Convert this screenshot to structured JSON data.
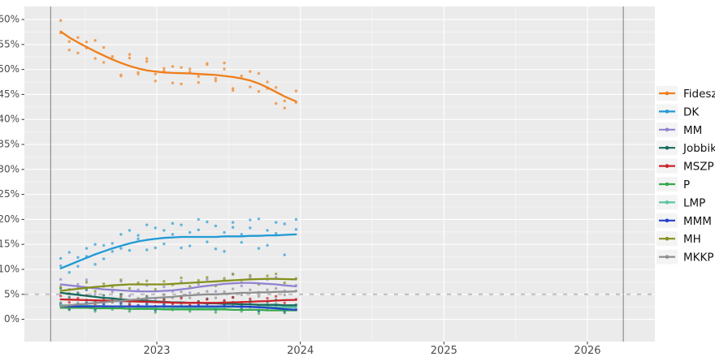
{
  "chart_data": {
    "type": "scatter",
    "title": "",
    "description": "Hungarian party polling: scatter of individual polls with smoothed trend lines",
    "legend_position": "right",
    "x_tick_labels": [
      "2023",
      "2024",
      "2025",
      "2026"
    ],
    "x_tick_years": [
      2023,
      2024,
      2025,
      2026
    ],
    "y_tick_labels": [
      "0%",
      "5%",
      "10%",
      "15%",
      "20%",
      "25%",
      "30%",
      "35%",
      "40%",
      "45%",
      "50%",
      "55%",
      "60%"
    ],
    "y_tick_values": [
      0,
      5,
      10,
      15,
      20,
      25,
      30,
      35,
      40,
      45,
      50,
      55,
      60
    ],
    "xlim": [
      2022.077,
      2026.47
    ],
    "ylim": [
      -4.45,
      62.6
    ],
    "grid": true,
    "threshold_line": {
      "value": 5,
      "style": "dashed"
    },
    "event_vlines": [
      2022.26,
      2026.25
    ],
    "poll_dates": [
      2022.33,
      2022.39,
      2022.45,
      2022.51,
      2022.57,
      2022.63,
      2022.69,
      2022.75,
      2022.81,
      2022.87,
      2022.93,
      2022.99,
      2023.05,
      2023.11,
      2023.17,
      2023.23,
      2023.29,
      2023.35,
      2023.41,
      2023.47,
      2023.53,
      2023.59,
      2023.65,
      2023.71,
      2023.77,
      2023.83,
      2023.89,
      2023.97
    ],
    "series": [
      {
        "name": "Fidesz",
        "color": "#ef7e1a",
        "trend": [
          57.6,
          56.4,
          55.4,
          54.5,
          53.6,
          52.8,
          52.0,
          51.3,
          50.7,
          50.2,
          49.8,
          49.6,
          49.4,
          49.3,
          49.25,
          49.2,
          49.1,
          49.0,
          48.9,
          48.7,
          48.5,
          48.2,
          47.8,
          47.2,
          46.4,
          45.5,
          44.6,
          43.6
        ],
        "polls": [
          59.8,
          53.9,
          56.4,
          54.3,
          55.8,
          51.4,
          52.6,
          48.7,
          52.3,
          49.4,
          52.2,
          47.7,
          49.7,
          50.6,
          47.1,
          50.1,
          48.6,
          51.0,
          47.7,
          51.3,
          45.8,
          48.7,
          49.6,
          45.6,
          47.5,
          43.2,
          43.7,
          43.4
        ],
        "polls2": [
          57.3,
          55.6,
          53.3,
          55.5,
          52.2,
          54.4,
          52.5,
          48.9,
          53.0,
          49.1,
          51.6,
          49.1,
          50.2,
          47.3,
          50.4,
          49.5,
          47.4,
          51.2,
          48.2,
          50.1,
          46.2,
          48.7,
          46.5,
          49.2,
          46.2,
          46.4,
          42.3,
          45.7
        ]
      },
      {
        "name": "DK",
        "color": "#219ad6",
        "trend": [
          10.2,
          10.9,
          11.6,
          12.3,
          13.0,
          13.6,
          14.2,
          14.7,
          15.2,
          15.6,
          15.9,
          16.1,
          16.3,
          16.4,
          16.5,
          16.5,
          16.5,
          16.5,
          16.5,
          16.6,
          16.6,
          16.6,
          16.7,
          16.7,
          16.8,
          16.8,
          16.9,
          17.0
        ],
        "polls": [
          12.2,
          9.4,
          12.4,
          14.2,
          11.0,
          14.8,
          13.6,
          17.0,
          13.8,
          16.1,
          18.9,
          14.3,
          17.8,
          19.2,
          14.3,
          17.4,
          20.0,
          15.5,
          18.7,
          13.6,
          18.4,
          17.0,
          19.9,
          14.2,
          17.8,
          19.4,
          12.9,
          20.0
        ],
        "polls2": [
          10.7,
          13.4,
          10.6,
          12.6,
          15.0,
          12.1,
          15.2,
          14.2,
          17.8,
          16.8,
          13.9,
          18.3,
          15.1,
          17.0,
          18.9,
          14.7,
          17.9,
          19.5,
          14.1,
          17.4,
          19.4,
          15.4,
          18.3,
          20.1,
          14.8,
          17.2,
          19.1,
          18.0
        ]
      },
      {
        "name": "MM",
        "color": "#9182cf",
        "trend": [
          7.0,
          6.8,
          6.6,
          6.4,
          6.2,
          6.0,
          5.9,
          5.8,
          5.7,
          5.6,
          5.6,
          5.6,
          5.7,
          5.8,
          6.0,
          6.2,
          6.5,
          6.7,
          6.9,
          7.1,
          7.2,
          7.3,
          7.3,
          7.2,
          7.1,
          7.0,
          6.8,
          6.6
        ],
        "polls": [
          8.0,
          6.0,
          7.0,
          7.9,
          5.0,
          6.6,
          5.5,
          7.6,
          4.7,
          5.9,
          6.8,
          4.1,
          6.5,
          5.6,
          7.6,
          5.3,
          7.0,
          8.0,
          5.6,
          7.8,
          9.1,
          6.7,
          8.4,
          5.4,
          8.0,
          8.4,
          5.7,
          6.8
        ]
      },
      {
        "name": "Jobbik",
        "color": "#17695c",
        "trend": [
          5.3,
          5.1,
          4.9,
          4.7,
          4.5,
          4.3,
          4.2,
          4.0,
          3.9,
          3.8,
          3.7,
          3.6,
          3.5,
          3.4,
          3.4,
          3.3,
          3.3,
          3.2,
          3.2,
          3.1,
          3.1,
          3.0,
          3.0,
          2.9,
          2.9,
          2.9,
          2.8,
          2.8
        ],
        "polls": [
          6.2,
          4.4,
          5.3,
          5.9,
          3.6,
          4.8,
          3.9,
          5.0,
          3.1,
          4.0,
          4.5,
          2.6,
          4.1,
          3.3,
          4.5,
          2.7,
          3.6,
          4.1,
          2.3,
          3.6,
          4.4,
          2.6,
          3.7,
          1.8,
          3.5,
          3.9,
          2.1,
          2.9
        ]
      },
      {
        "name": "MSZP",
        "color": "#c92128",
        "trend": [
          4.0,
          3.95,
          3.9,
          3.85,
          3.8,
          3.75,
          3.7,
          3.65,
          3.6,
          3.55,
          3.5,
          3.45,
          3.4,
          3.35,
          3.3,
          3.3,
          3.3,
          3.3,
          3.3,
          3.35,
          3.4,
          3.45,
          3.5,
          3.6,
          3.65,
          3.75,
          3.85,
          3.9
        ],
        "polls": [
          4.7,
          3.4,
          4.2,
          4.8,
          3.0,
          4.2,
          3.5,
          4.5,
          2.9,
          3.7,
          4.1,
          2.6,
          3.9,
          3.1,
          4.2,
          2.8,
          3.5,
          4.0,
          2.5,
          3.8,
          4.4,
          3.2,
          4.1,
          2.7,
          4.2,
          4.6,
          3.3,
          4.0
        ]
      },
      {
        "name": "P",
        "color": "#36a84c",
        "trend": [
          2.3,
          2.3,
          2.3,
          2.3,
          2.2,
          2.2,
          2.2,
          2.2,
          2.1,
          2.1,
          2.1,
          2.1,
          2.0,
          2.0,
          2.0,
          2.0,
          2.0,
          2.0,
          2.0,
          2.0,
          1.9,
          1.9,
          1.9,
          1.9,
          1.8,
          1.8,
          1.8,
          1.8
        ],
        "polls": [
          2.8,
          1.9,
          2.5,
          3.0,
          1.6,
          2.5,
          2.0,
          2.8,
          1.6,
          2.2,
          2.5,
          1.4,
          2.4,
          1.9,
          2.7,
          1.6,
          2.2,
          2.5,
          1.4,
          2.3,
          2.7,
          1.6,
          2.4,
          1.2,
          2.2,
          2.4,
          1.3,
          1.9
        ]
      },
      {
        "name": "LMP",
        "color": "#5bc4a4",
        "trend": [
          2.8,
          2.8,
          2.75,
          2.7,
          2.7,
          2.65,
          2.6,
          2.6,
          2.55,
          2.5,
          2.5,
          2.5,
          2.45,
          2.4,
          2.4,
          2.4,
          2.4,
          2.4,
          2.4,
          2.45,
          2.5,
          2.5,
          2.5,
          2.5,
          2.5,
          2.45,
          2.4,
          2.4
        ],
        "polls": [
          3.4,
          2.3,
          3.1,
          3.5,
          2.0,
          3.1,
          2.4,
          3.3,
          2.0,
          2.7,
          3.0,
          1.7,
          2.9,
          2.2,
          3.2,
          1.9,
          2.7,
          3.0,
          1.7,
          2.9,
          3.4,
          2.1,
          3.1,
          1.7,
          3.0,
          3.2,
          1.8,
          2.5
        ]
      },
      {
        "name": "MMM",
        "color": "#2340cc",
        "trend": [
          2.6,
          2.6,
          2.6,
          2.6,
          2.6,
          2.6,
          2.6,
          2.6,
          2.6,
          2.6,
          2.6,
          2.6,
          2.6,
          2.6,
          2.6,
          2.6,
          2.6,
          2.6,
          2.6,
          2.6,
          2.6,
          2.55,
          2.5,
          2.4,
          2.3,
          2.2,
          2.05,
          1.9
        ],
        "polls": [
          3.1,
          2.1,
          2.9,
          3.3,
          2.0,
          3.0,
          2.3,
          3.2,
          2.1,
          2.8,
          3.1,
          1.9,
          3.0,
          2.4,
          3.3,
          2.1,
          2.9,
          3.1,
          2.0,
          3.0,
          3.4,
          2.2,
          3.0,
          1.7,
          2.7,
          2.8,
          1.6,
          1.9
        ]
      },
      {
        "name": "MH",
        "color": "#84901c",
        "trend": [
          5.7,
          5.9,
          6.1,
          6.3,
          6.5,
          6.6,
          6.8,
          6.9,
          7.0,
          7.0,
          7.0,
          7.0,
          7.0,
          7.1,
          7.2,
          7.3,
          7.4,
          7.5,
          7.6,
          7.7,
          7.8,
          7.9,
          8.0,
          8.05,
          8.1,
          8.1,
          8.05,
          8.0
        ],
        "polls": [
          6.5,
          5.2,
          6.5,
          7.4,
          5.6,
          7.1,
          6.5,
          7.9,
          6.2,
          7.3,
          7.7,
          6.0,
          7.6,
          6.9,
          8.3,
          6.6,
          7.8,
          8.4,
          6.7,
          8.2,
          9.0,
          7.4,
          8.8,
          7.0,
          8.7,
          9.1,
          7.3,
          8.2
        ]
      },
      {
        "name": "MKKP",
        "color": "#8f8f8f",
        "trend": [
          2.6,
          2.8,
          3.0,
          3.1,
          3.3,
          3.4,
          3.6,
          3.7,
          3.9,
          4.0,
          4.2,
          4.3,
          4.4,
          4.5,
          4.7,
          4.8,
          4.9,
          5.0,
          5.0,
          5.1,
          5.2,
          5.3,
          5.3,
          5.4,
          5.4,
          5.5,
          5.5,
          5.6
        ],
        "polls": [
          3.2,
          2.3,
          3.3,
          3.9,
          2.6,
          3.8,
          3.4,
          4.4,
          3.3,
          4.2,
          4.7,
          3.5,
          4.9,
          4.3,
          5.5,
          4.3,
          5.2,
          5.6,
          4.3,
          5.5,
          6.1,
          4.9,
          5.9,
          4.6,
          5.9,
          6.2,
          4.9,
          5.7
        ]
      }
    ]
  },
  "style": {
    "panel_bg": "#ebebeb",
    "page_bg": "#ffffff",
    "grid_major": "#ffffff",
    "grid_minor": "rgba(255,255,255,0.55)",
    "axis_text_color": "#4d4d4d",
    "tick_color": "#333333",
    "threshold_color": "#bdbdbd",
    "event_line_color": "#7d7d7d",
    "legend_key_bg": "#f4f4f4",
    "legend_text_color": "#111111"
  }
}
